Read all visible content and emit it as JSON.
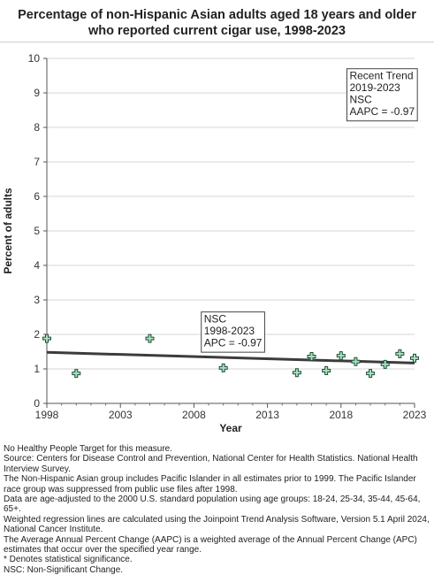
{
  "chart_data": {
    "type": "scatter",
    "title": "Percentage of non-Hispanic Asian adults aged 18 years and older who reported current cigar use, 1998-2023",
    "xlabel": "Year",
    "ylabel": "Percent of adults",
    "xlim": [
      1998,
      2023
    ],
    "ylim": [
      0,
      10
    ],
    "xticks": [
      1998,
      2003,
      2008,
      2013,
      2018,
      2023
    ],
    "yticks": [
      0,
      1,
      2,
      3,
      4,
      5,
      6,
      7,
      8,
      9,
      10
    ],
    "grid": true,
    "series": [
      {
        "marker": "plus",
        "x": [
          1998,
          2000,
          2005,
          2010,
          2015,
          2016,
          2017,
          2018,
          2019,
          2020,
          2021,
          2022,
          2023
        ],
        "y": [
          1.88,
          0.87,
          1.88,
          1.03,
          0.89,
          1.36,
          0.95,
          1.38,
          1.21,
          0.87,
          1.13,
          1.44,
          1.31
        ]
      }
    ],
    "trend_line": {
      "x": [
        1998,
        2019,
        2023
      ],
      "y": [
        1.48,
        1.22,
        1.17
      ]
    },
    "annotations": [
      {
        "lines": [
          "NSC",
          "1998-2023",
          "APC = -0.97"
        ],
        "anchor_x": 2008.5,
        "anchor_y": 2.65
      },
      {
        "lines": [
          "Recent Trend",
          "2019-2023",
          "NSC",
          "AAPC = -0.97"
        ],
        "anchor_x": 2018.4,
        "anchor_y": 9.7
      }
    ],
    "colors": {
      "marker_fill": "#a8e0c0",
      "marker_stroke": "#1e4e35",
      "trend": "#3c3c3c",
      "grid": "#d6d6d6"
    }
  },
  "footnotes": [
    "No Healthy People Target for this measure.",
    "Source: Centers for Disease Control and Prevention, National Center for Health Statistics. National Health Interview Survey.",
    "The Non-Hispanic Asian group includes Pacific Islander in all estimates prior to 1999. The Pacific Islander race group was suppressed from public use files after 1998.",
    "Data are age-adjusted to the 2000 U.S. standard population using age groups: 18-24, 25-34, 35-44, 45-64, 65+.",
    "Weighted regression lines are calculated using the Joinpoint Trend Analysis Software, Version 5.1 April 2024, National Cancer Institute.",
    "The Average Annual Percent Change (AAPC) is a weighted average of the Annual Percent Change (APC) estimates that occur over the specified year range.",
    "* Denotes statistical significance.",
    "NSC: Non-Significant Change."
  ]
}
